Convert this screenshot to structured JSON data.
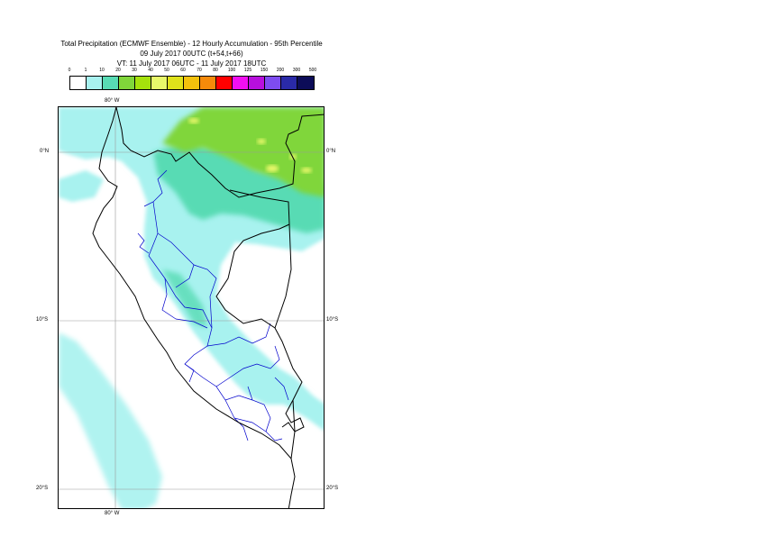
{
  "header": {
    "title_line1": "Total Precipitation (ECMWF Ensemble) - 12 Hourly Accumulation - 95th Percentile",
    "title_line2": "09 July 2017 00UTC (t+54,t+66)",
    "title_line3": "VT: 11 July 2017 06UTC - 11 July 2017 18UTC"
  },
  "legend": {
    "ticks": [
      "0",
      "1",
      "10",
      "20",
      "30",
      "40",
      "50",
      "60",
      "70",
      "80",
      "100",
      "125",
      "150",
      "200",
      "300",
      "500"
    ],
    "colors": [
      "#ffffff",
      "#a8f2ef",
      "#58dbb4",
      "#80d63a",
      "#a5e10c",
      "#e8f86a",
      "#dfe21a",
      "#f3c10c",
      "#f58a0a",
      "#ff0000",
      "#f20ff2",
      "#b80fdd",
      "#7e4cf0",
      "#2a2aa8",
      "#0c0c58"
    ]
  },
  "map": {
    "lon_labels": {
      "top": "80° W",
      "bottom": "80° W"
    },
    "lat_labels": {
      "left": [
        "0°N",
        "10°S",
        "20°S"
      ],
      "right": [
        "0°N",
        "10°S",
        "20°S"
      ]
    },
    "colors": {
      "light_cyan": "#a8f2ef",
      "teal": "#58dbb4",
      "green": "#80d63a",
      "yellow_green": "#e8f86a",
      "country_border": "#000000",
      "region_border": "#0000cc",
      "grid": "#999999"
    }
  }
}
